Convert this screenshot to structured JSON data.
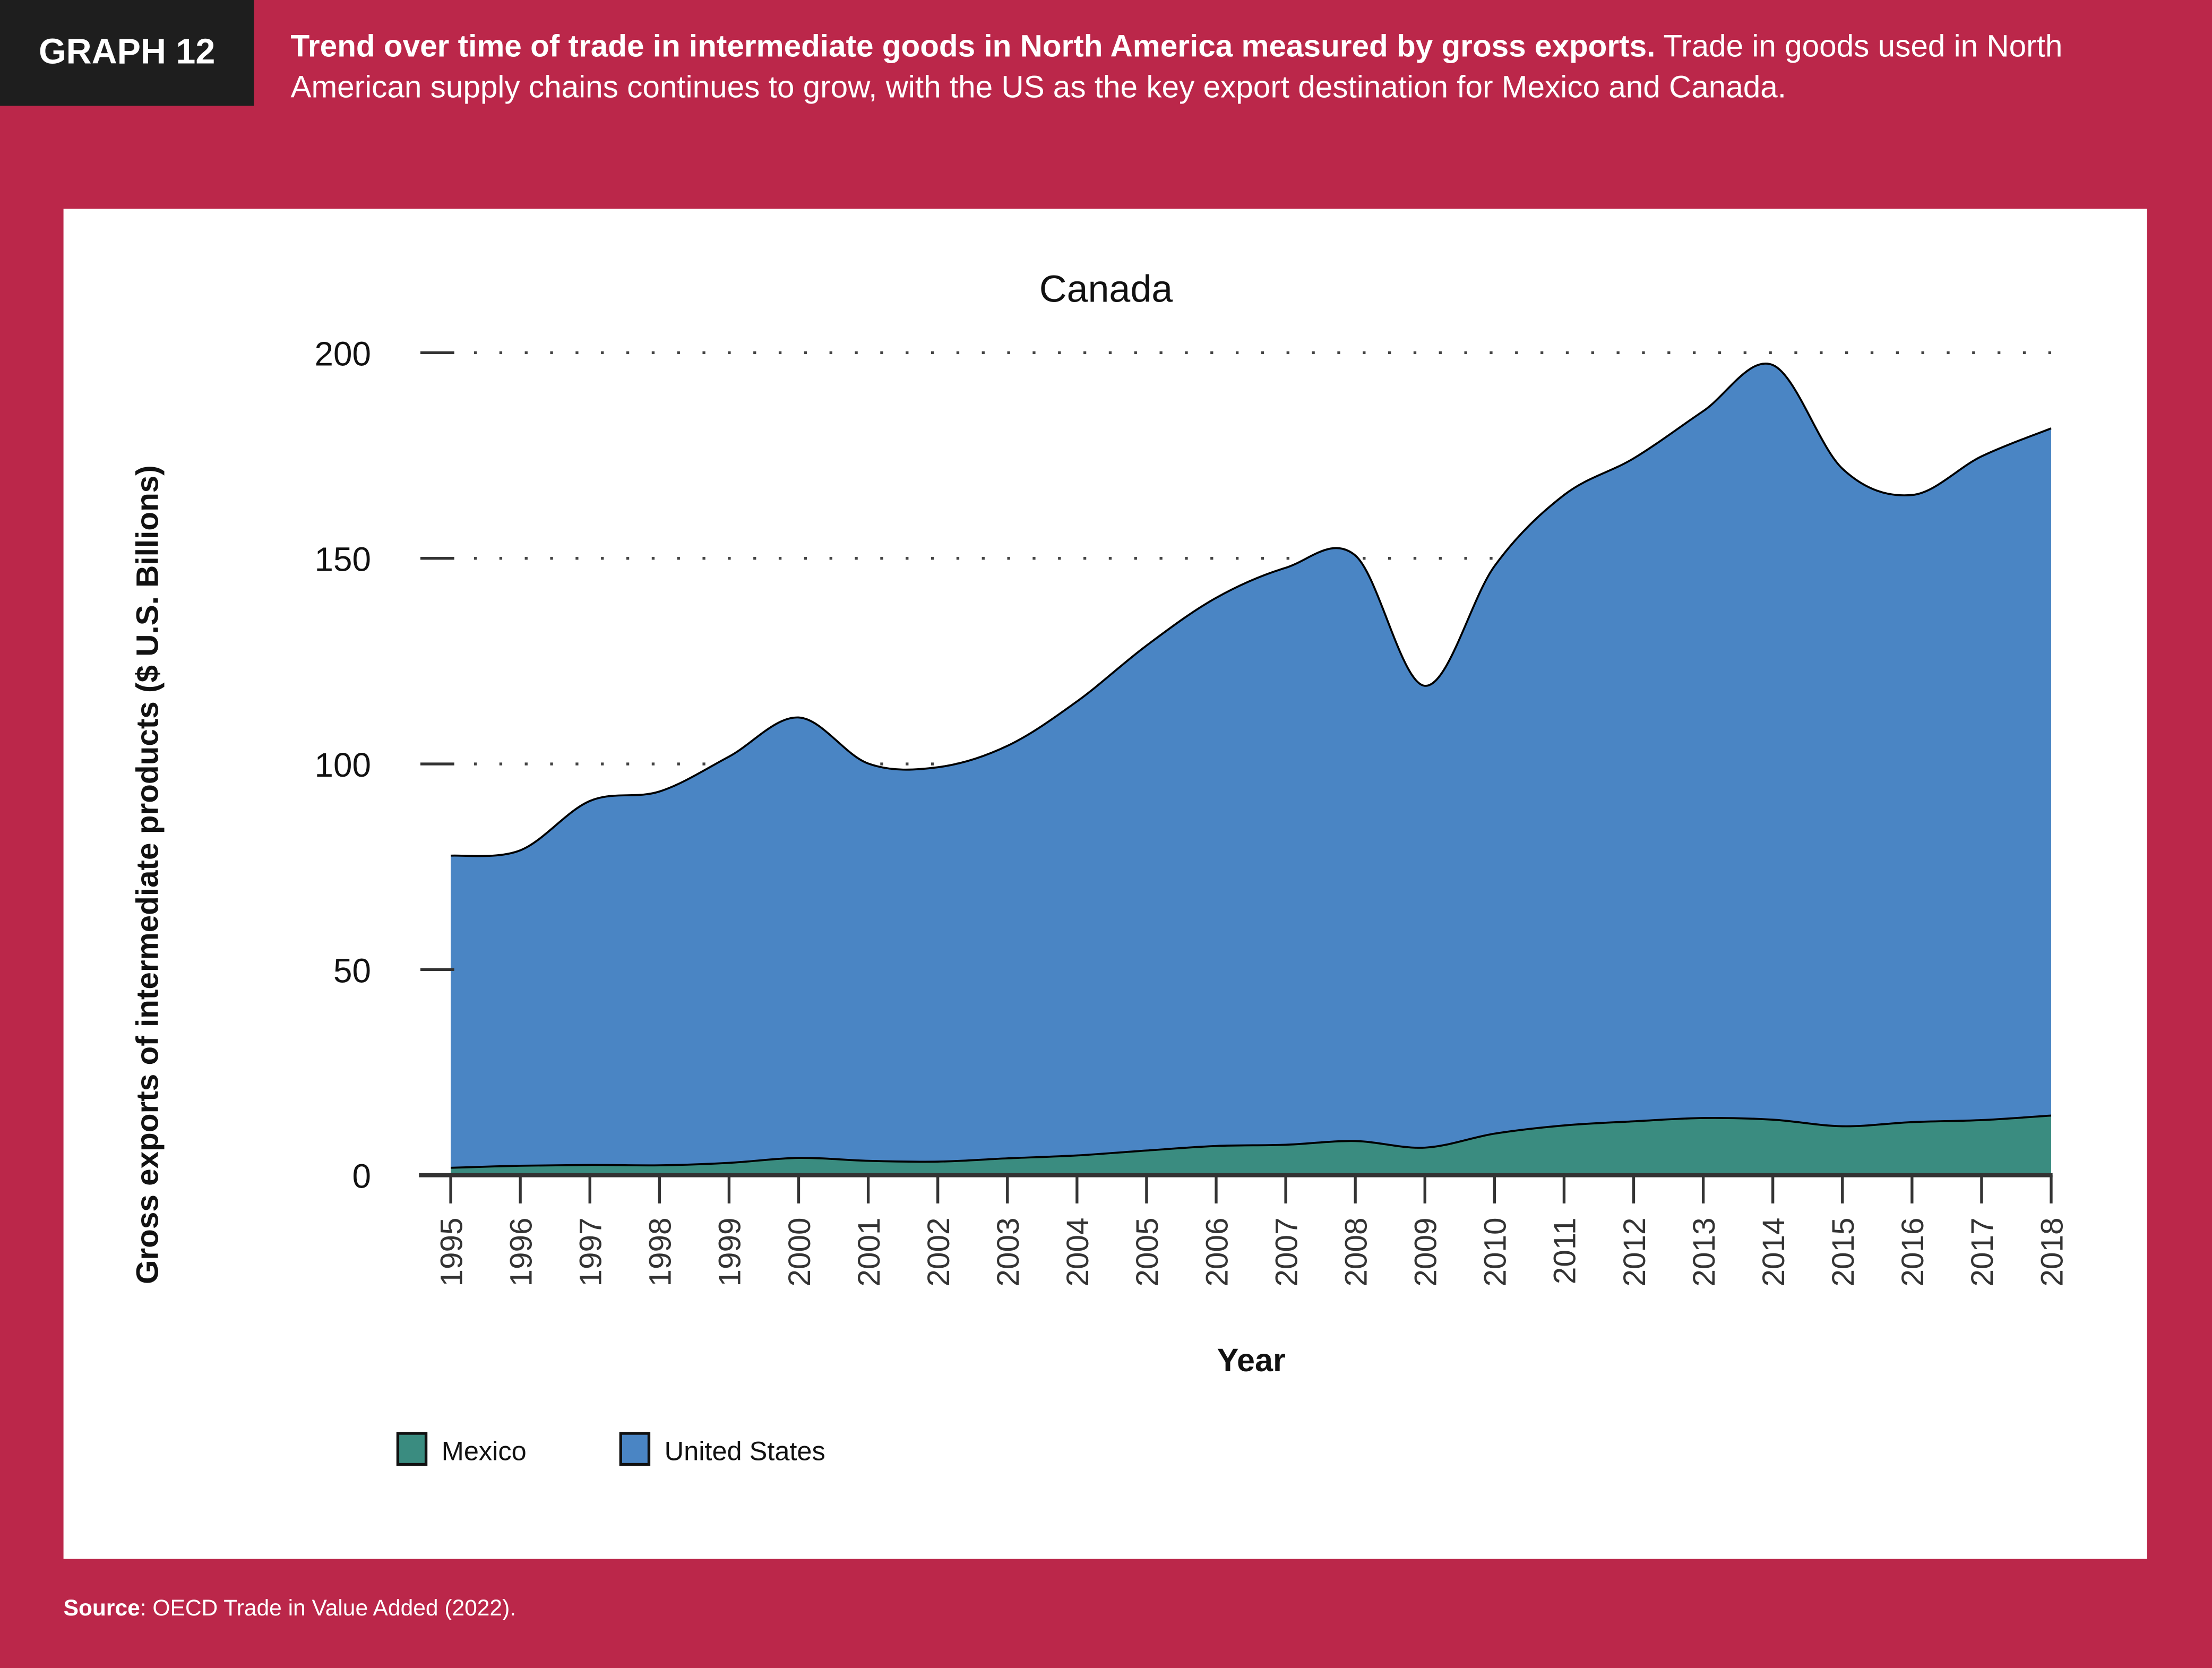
{
  "header": {
    "tag": "GRAPH 12",
    "caption_bold": "Trend over time of trade in intermediate goods in North America measured by gross exports.",
    "caption_rest": " Trade in goods used in North American supply chains continues to grow, with the US as the key export destination for Mexico and Canada."
  },
  "footer": {
    "source_label": "Source",
    "source_text": ": OECD Trade in Value Added (2022)."
  },
  "colors": {
    "background": "#bb274a",
    "tag_bg": "#1e1e1e",
    "mexico": "#3a8c80",
    "united_states": "#4a85c4"
  },
  "chart_data": {
    "type": "area",
    "stacked": true,
    "title": "Canada",
    "xlabel": "Year",
    "ylabel": "Gross exports of intermediate products ($ U.S. Billions)",
    "ylim": [
      0,
      200
    ],
    "yticks": [
      0,
      50,
      100,
      150,
      200
    ],
    "grid": "dotted horizontal at 100, 150, 200",
    "legend_position": "bottom-left",
    "x": [
      1995,
      1996,
      1997,
      1998,
      1999,
      2000,
      2001,
      2002,
      2003,
      2004,
      2005,
      2006,
      2007,
      2008,
      2009,
      2010,
      2011,
      2012,
      2013,
      2014,
      2015,
      2016,
      2017,
      2018
    ],
    "series": [
      {
        "name": "Mexico",
        "color": "#3a8c80",
        "values": [
          1.8,
          2.3,
          2.5,
          2.4,
          3.0,
          4.2,
          3.5,
          3.3,
          4.1,
          4.8,
          6.0,
          7.1,
          7.4,
          8.3,
          6.7,
          10.1,
          12.1,
          13.1,
          13.9,
          13.5,
          11.9,
          12.9,
          13.4,
          14.5
        ]
      },
      {
        "name": "United States",
        "color": "#4a85c4",
        "values": [
          75.9,
          76.7,
          88.5,
          90.9,
          98.8,
          107.1,
          96.6,
          95.9,
          100.3,
          110.4,
          122.8,
          133.3,
          140.3,
          142.4,
          112.3,
          138.0,
          153.3,
          161.2,
          171.9,
          183.5,
          159.9,
          152.5,
          161.4,
          167.1
        ]
      }
    ]
  }
}
